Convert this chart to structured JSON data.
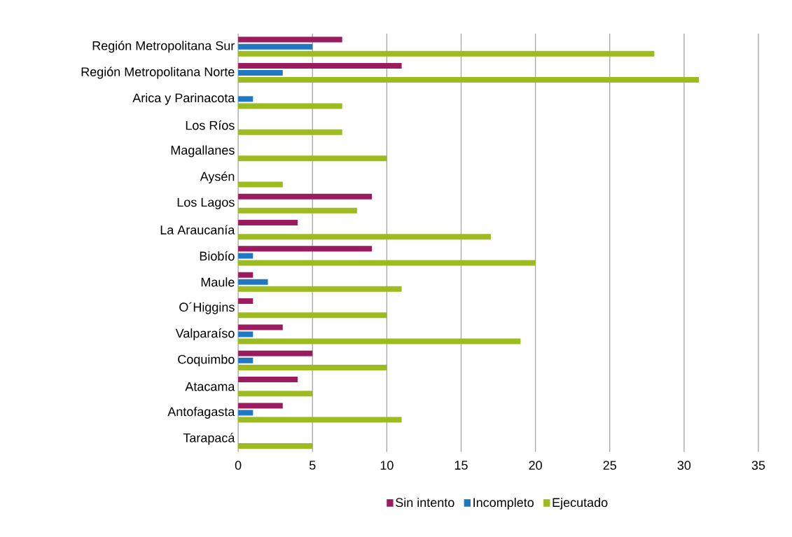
{
  "chart_data": {
    "type": "bar",
    "orientation": "horizontal",
    "categories": [
      "Región Metropolitana Sur",
      "Región Metropolitana Norte",
      "Arica y Parinacota",
      "Los Ríos",
      "Magallanes",
      "Aysén",
      "Los Lagos",
      "La Araucanía",
      "Biobío",
      "Maule",
      "O´Higgins",
      "Valparaíso",
      "Coquimbo",
      "Atacama",
      "Antofagasta",
      "Tarapacá"
    ],
    "series": [
      {
        "name": "Sin intento",
        "color": "#9b1b5f",
        "values": [
          7,
          11,
          0,
          0,
          0,
          0,
          9,
          4,
          9,
          1,
          1,
          3,
          5,
          4,
          3,
          0
        ]
      },
      {
        "name": "Incompleto",
        "color": "#1f78c1",
        "values": [
          5,
          3,
          1,
          0,
          0,
          0,
          0,
          0,
          1,
          2,
          0,
          1,
          1,
          0,
          1,
          0
        ]
      },
      {
        "name": "Ejecutado",
        "color": "#9bbb1f",
        "values": [
          28,
          31,
          7,
          7,
          10,
          3,
          8,
          17,
          20,
          11,
          10,
          19,
          10,
          5,
          11,
          5
        ]
      }
    ],
    "xlim": [
      0,
      35
    ],
    "xticks": [
      0,
      5,
      10,
      15,
      20,
      25,
      30,
      35
    ],
    "grid": "x",
    "legend": "bottom"
  }
}
